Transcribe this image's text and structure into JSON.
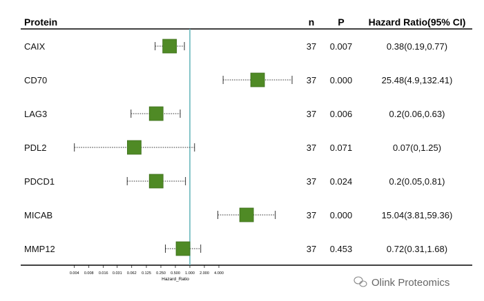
{
  "chart_data": {
    "type": "forest",
    "headers": {
      "protein": "Protein",
      "n": "n",
      "p": "P",
      "hr": "Hazard Ratio(95% CI)"
    },
    "rows": [
      {
        "protein": "CAIX",
        "n": "37",
        "p": "0.007",
        "hr_text": "0.38(0.19,0.77)",
        "hr": 0.38,
        "lo": 0.19,
        "hi": 0.77
      },
      {
        "protein": "CD70",
        "n": "37",
        "p": "0.000",
        "hr_text": "25.48(4.9,132.41)",
        "hr": 25.48,
        "lo": 4.9,
        "hi": 132.41
      },
      {
        "protein": "LAG3",
        "n": "37",
        "p": "0.006",
        "hr_text": "0.2(0.06,0.63)",
        "hr": 0.2,
        "lo": 0.06,
        "hi": 0.63
      },
      {
        "protein": "PDL2",
        "n": "37",
        "p": "0.071",
        "hr_text": "0.07(0,1.25)",
        "hr": 0.07,
        "lo": 0.004,
        "hi": 1.25
      },
      {
        "protein": "PDCD1",
        "n": "37",
        "p": "0.024",
        "hr_text": "0.2(0.05,0.81)",
        "hr": 0.2,
        "lo": 0.05,
        "hi": 0.81
      },
      {
        "protein": "MICAB",
        "n": "37",
        "p": "0.000",
        "hr_text": "15.04(3.81,59.36)",
        "hr": 15.04,
        "lo": 3.81,
        "hi": 59.36
      },
      {
        "protein": "MMP12",
        "n": "37",
        "p": "0.453",
        "hr_text": "0.72(0.31,1.68)",
        "hr": 0.72,
        "lo": 0.31,
        "hi": 1.68
      }
    ],
    "xscale": "log2",
    "xlim": [
      0.004,
      140
    ],
    "xticks": [
      "0.004",
      "0.008",
      "0.016",
      "0.031",
      "0.062",
      "0.125",
      "0.250",
      "0.500",
      "1.000",
      "2.000",
      "4.000"
    ],
    "xlabel": "Hazard_Ratio",
    "reference_line": 1,
    "colors": {
      "box": "#4f8a25",
      "box_edge": "#3d6e1c",
      "reference": "#5fb3b7",
      "whisker": "#333333"
    }
  },
  "watermark": "Olink Proteomics"
}
